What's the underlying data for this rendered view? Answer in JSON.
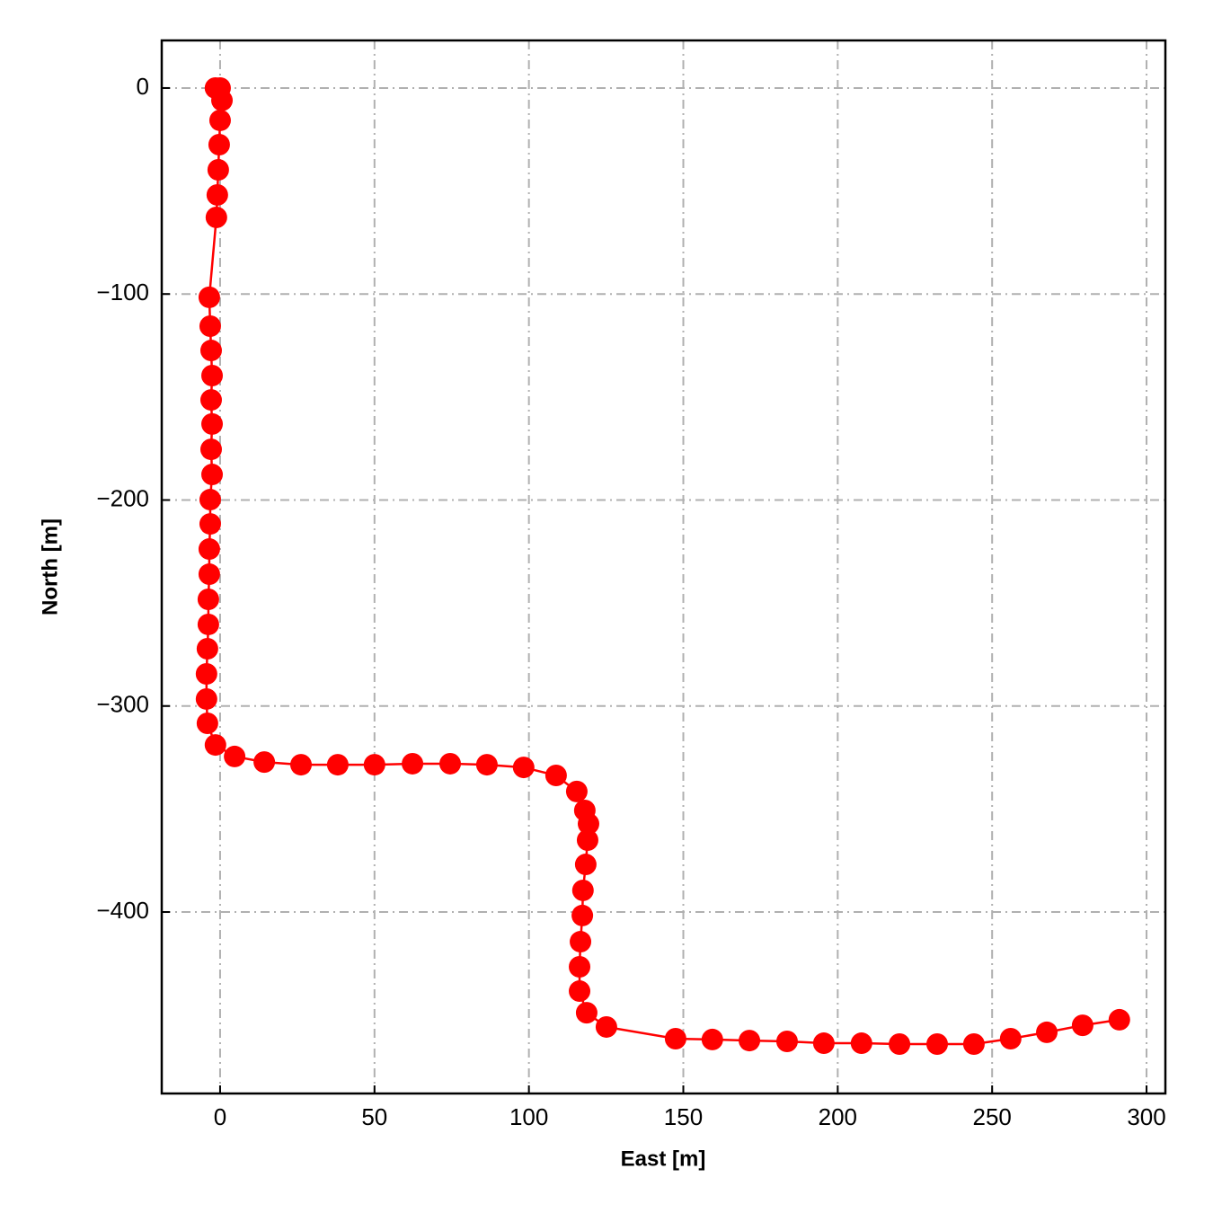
{
  "chart_data": {
    "type": "line",
    "xlabel": "East [m]",
    "ylabel": "North [m]",
    "color": "#ff0000",
    "markers": true,
    "grid": true,
    "xlim": [
      -18.9,
      306.1
    ],
    "ylim": [
      -488.1,
      23.1
    ],
    "xticks": [
      0,
      50,
      100,
      150,
      200,
      250,
      300
    ],
    "yticks": [
      {
        "value": -400,
        "label": "−400"
      },
      {
        "value": -300,
        "label": "−300"
      },
      {
        "value": -200,
        "label": "−200"
      },
      {
        "value": -100,
        "label": "−100"
      },
      0
    ],
    "x": [
      -1.5,
      0,
      0.6,
      0,
      -0.3,
      -0.6,
      -0.9,
      -1.2,
      -3.5,
      -3.2,
      -2.9,
      -2.6,
      -2.9,
      -2.6,
      -2.9,
      -2.6,
      -3.2,
      -3.2,
      -3.5,
      -3.5,
      -3.8,
      -3.8,
      -4.1,
      -4.4,
      -4.4,
      -4.1,
      -1.5,
      4.7,
      14.3,
      26.2,
      38.1,
      50,
      62.3,
      74.5,
      86.4,
      98.3,
      108.8,
      115.5,
      118.1,
      119.3,
      119.0,
      118.4,
      117.5,
      117.3,
      116.7,
      116.4,
      116.4,
      118.7,
      125.1,
      147.5,
      159.4,
      171.4,
      183.6,
      195.5,
      207.7,
      220.0,
      232.2,
      244.1,
      256.0,
      267.7,
      279.3,
      291.2
    ],
    "values": [
      0,
      0,
      -6,
      -15.7,
      -27.5,
      -39.7,
      -51.9,
      -62.8,
      -101.6,
      -115.6,
      -127.4,
      -139.6,
      -151.4,
      -163.1,
      -175.4,
      -187.6,
      -199.8,
      -211.6,
      -223.8,
      -236.0,
      -248.2,
      -260.4,
      -272.2,
      -284.4,
      -296.6,
      -308.4,
      -318.9,
      -324.5,
      -327.2,
      -328.5,
      -328.5,
      -328.5,
      -328.0,
      -328.0,
      -328.5,
      -329.8,
      -333.7,
      -341.5,
      -350.7,
      -357.2,
      -365.1,
      -376.9,
      -389.5,
      -401.7,
      -414.4,
      -426.6,
      -438.4,
      -448.9,
      -455.8,
      -461.5,
      -461.9,
      -462.4,
      -462.8,
      -463.7,
      -463.7,
      -464.1,
      -464.1,
      -464.1,
      -461.5,
      -458.4,
      -455.0,
      -452.3
    ]
  }
}
